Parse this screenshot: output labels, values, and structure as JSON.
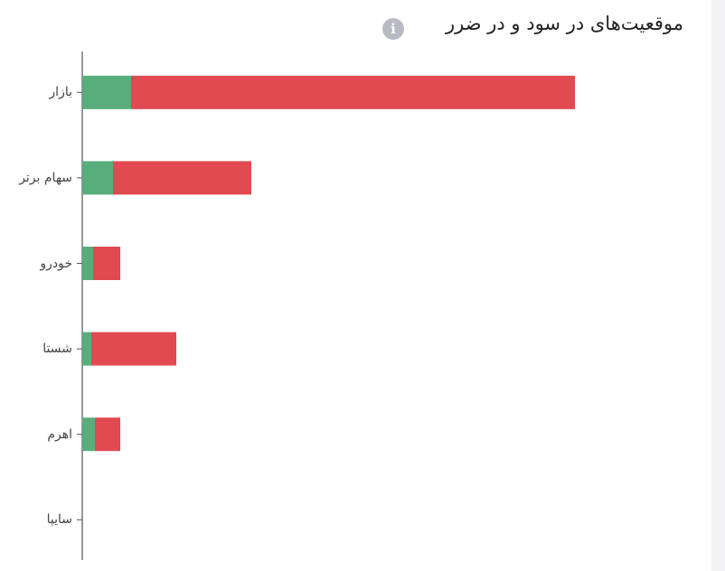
{
  "chart_data": {
    "type": "bar",
    "orientation": "horizontal",
    "stacked": true,
    "title": "موقعیت‌های در سود و در ضرر",
    "categories": [
      "بازار",
      "سهام برتر",
      "خودرو",
      "شستا",
      "اهرم",
      "سایپا"
    ],
    "series": [
      {
        "color": "#58ad7c",
        "values": [
          54,
          34,
          12,
          10,
          14,
          0
        ]
      },
      {
        "color": "#e04a50",
        "values": [
          491,
          153,
          30,
          94,
          28,
          0
        ]
      }
    ]
  }
}
